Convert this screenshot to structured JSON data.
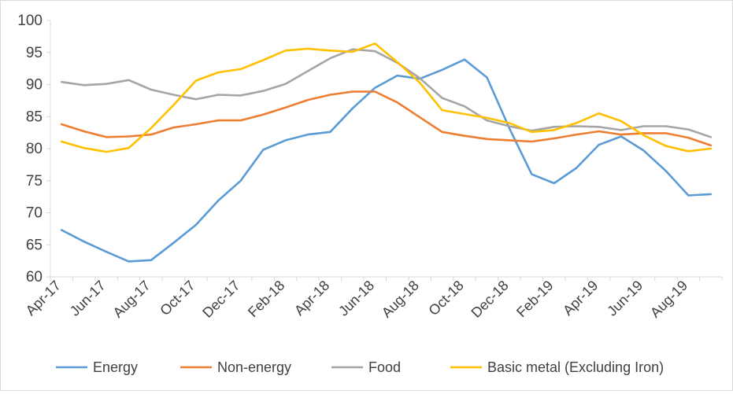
{
  "chart_data": {
    "type": "line",
    "title": "",
    "xlabel": "",
    "ylabel": "",
    "ylim": [
      60,
      100
    ],
    "yticks": [
      "60",
      "65",
      "70",
      "75",
      "80",
      "85",
      "90",
      "95",
      "100"
    ],
    "categories": [
      "Apr-17",
      "May-17",
      "Jun-17",
      "Jul-17",
      "Aug-17",
      "Sep-17",
      "Oct-17",
      "Nov-17",
      "Dec-17",
      "Jan-18",
      "Feb-18",
      "Mar-18",
      "Apr-18",
      "May-18",
      "Jun-18",
      "Jul-18",
      "Aug-18",
      "Sep-18",
      "Oct-18",
      "Nov-18",
      "Dec-18",
      "Jan-19",
      "Feb-19",
      "Mar-19",
      "Apr-19",
      "May-19",
      "Jun-19",
      "Jul-19",
      "Aug-19",
      "Sep-19"
    ],
    "xtick_labels": [
      "Apr-17",
      "Jun-17",
      "Aug-17",
      "Oct-17",
      "Dec-17",
      "Feb-18",
      "Apr-18",
      "Jun-18",
      "Aug-18",
      "Oct-18",
      "Dec-18",
      "Feb-19",
      "Apr-19",
      "Jun-19",
      "Aug-19"
    ],
    "grid": false,
    "legend_position": "bottom",
    "series": [
      {
        "name": "Energy",
        "color": "#5B9BD5",
        "values": [
          67.3,
          65.5,
          63.9,
          62.4,
          62.6,
          65.3,
          68.1,
          71.9,
          75.0,
          79.8,
          81.3,
          82.2,
          82.6,
          86.3,
          89.5,
          91.4,
          90.9,
          92.3,
          93.9,
          91.1,
          83.2,
          76.0,
          74.6,
          77.0,
          80.6,
          81.9,
          79.7,
          76.5,
          72.7,
          72.9
        ]
      },
      {
        "name": "Non-energy",
        "color": "#ED7D31",
        "values": [
          83.8,
          82.7,
          81.8,
          81.9,
          82.2,
          83.3,
          83.8,
          84.4,
          84.4,
          85.3,
          86.4,
          87.6,
          88.4,
          88.9,
          88.9,
          87.2,
          84.9,
          82.6,
          82.0,
          81.5,
          81.3,
          81.1,
          81.6,
          82.2,
          82.7,
          82.2,
          82.4,
          82.4,
          81.7,
          80.5
        ]
      },
      {
        "name": "Food",
        "color": "#A5A5A5",
        "values": [
          90.4,
          89.9,
          90.1,
          90.7,
          89.2,
          88.4,
          87.7,
          88.4,
          88.3,
          89.0,
          90.1,
          92.1,
          94.1,
          95.5,
          95.2,
          93.4,
          91.0,
          87.9,
          86.6,
          84.4,
          83.5,
          82.8,
          83.4,
          83.5,
          83.4,
          82.9,
          83.5,
          83.5,
          83.0,
          81.8
        ]
      },
      {
        "name": "Basic metal (Excluding Iron)",
        "color": "#FFC000",
        "values": [
          81.1,
          80.1,
          79.5,
          80.1,
          83.2,
          86.8,
          90.6,
          91.9,
          92.4,
          93.8,
          95.3,
          95.6,
          95.3,
          95.1,
          96.4,
          93.5,
          90.3,
          86.0,
          85.4,
          84.8,
          84.0,
          82.6,
          82.9,
          84.0,
          85.5,
          84.3,
          82.1,
          80.4,
          79.6,
          80.0
        ]
      }
    ]
  }
}
